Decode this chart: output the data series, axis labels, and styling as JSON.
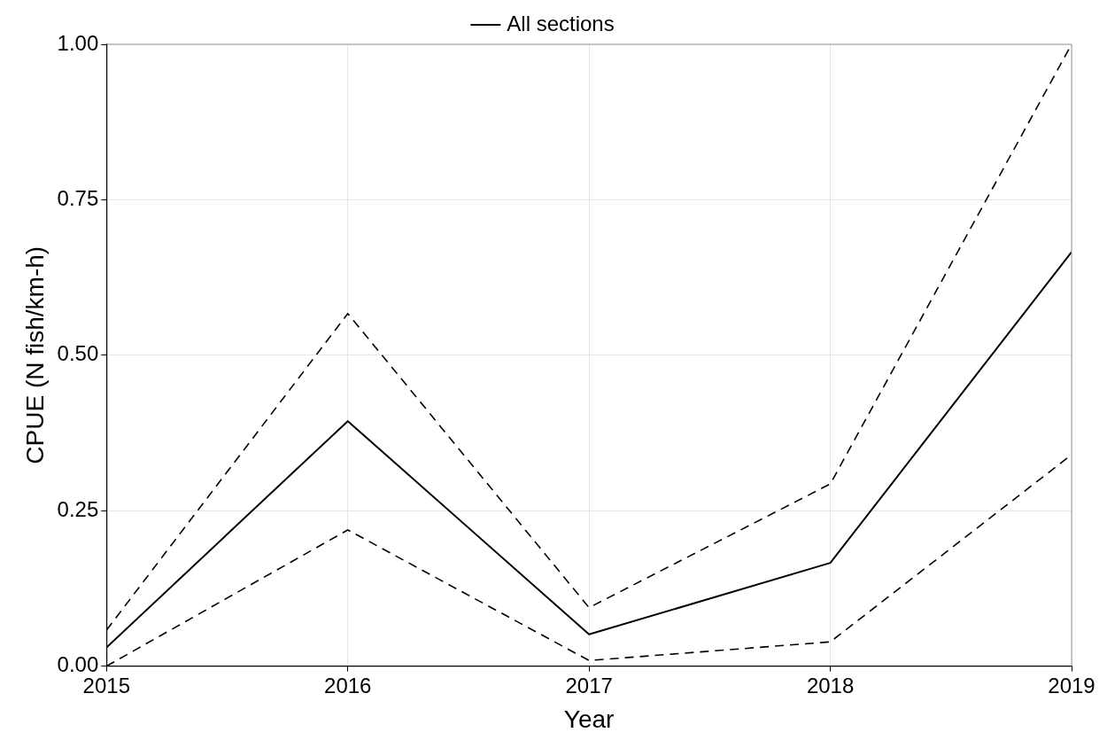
{
  "chart_data": {
    "type": "line",
    "xlabel": "Year",
    "ylabel": "CPUE (N fish/km-h)",
    "x": [
      2015,
      2016,
      2017,
      2018,
      2019
    ],
    "series": [
      {
        "name": "All sections",
        "color": "#000000",
        "values": [
          0.03,
          0.394,
          0.051,
          0.166,
          0.666
        ],
        "line_style": "solid"
      },
      {
        "color": "#000000",
        "values": [
          0.058,
          0.567,
          0.094,
          0.293,
          1.0
        ],
        "line_style": "dashed"
      },
      {
        "color": "#000000",
        "values": [
          0.0,
          0.219,
          0.009,
          0.039,
          0.34
        ],
        "line_style": "dashed"
      }
    ],
    "xlim": [
      2015,
      2019
    ],
    "xticks": [
      2015,
      2016,
      2017,
      2018,
      2019
    ],
    "ylim": [
      0,
      1
    ],
    "yticks": [
      {
        "value": 0,
        "label": "0.00"
      },
      {
        "value": 0.25,
        "label": "0.25"
      },
      {
        "value": 0.5,
        "label": "0.50"
      },
      {
        "value": 0.75,
        "label": "0.75"
      },
      {
        "value": 1,
        "label": "1.00"
      }
    ],
    "grid": true,
    "legend": "top",
    "marker": "none"
  }
}
